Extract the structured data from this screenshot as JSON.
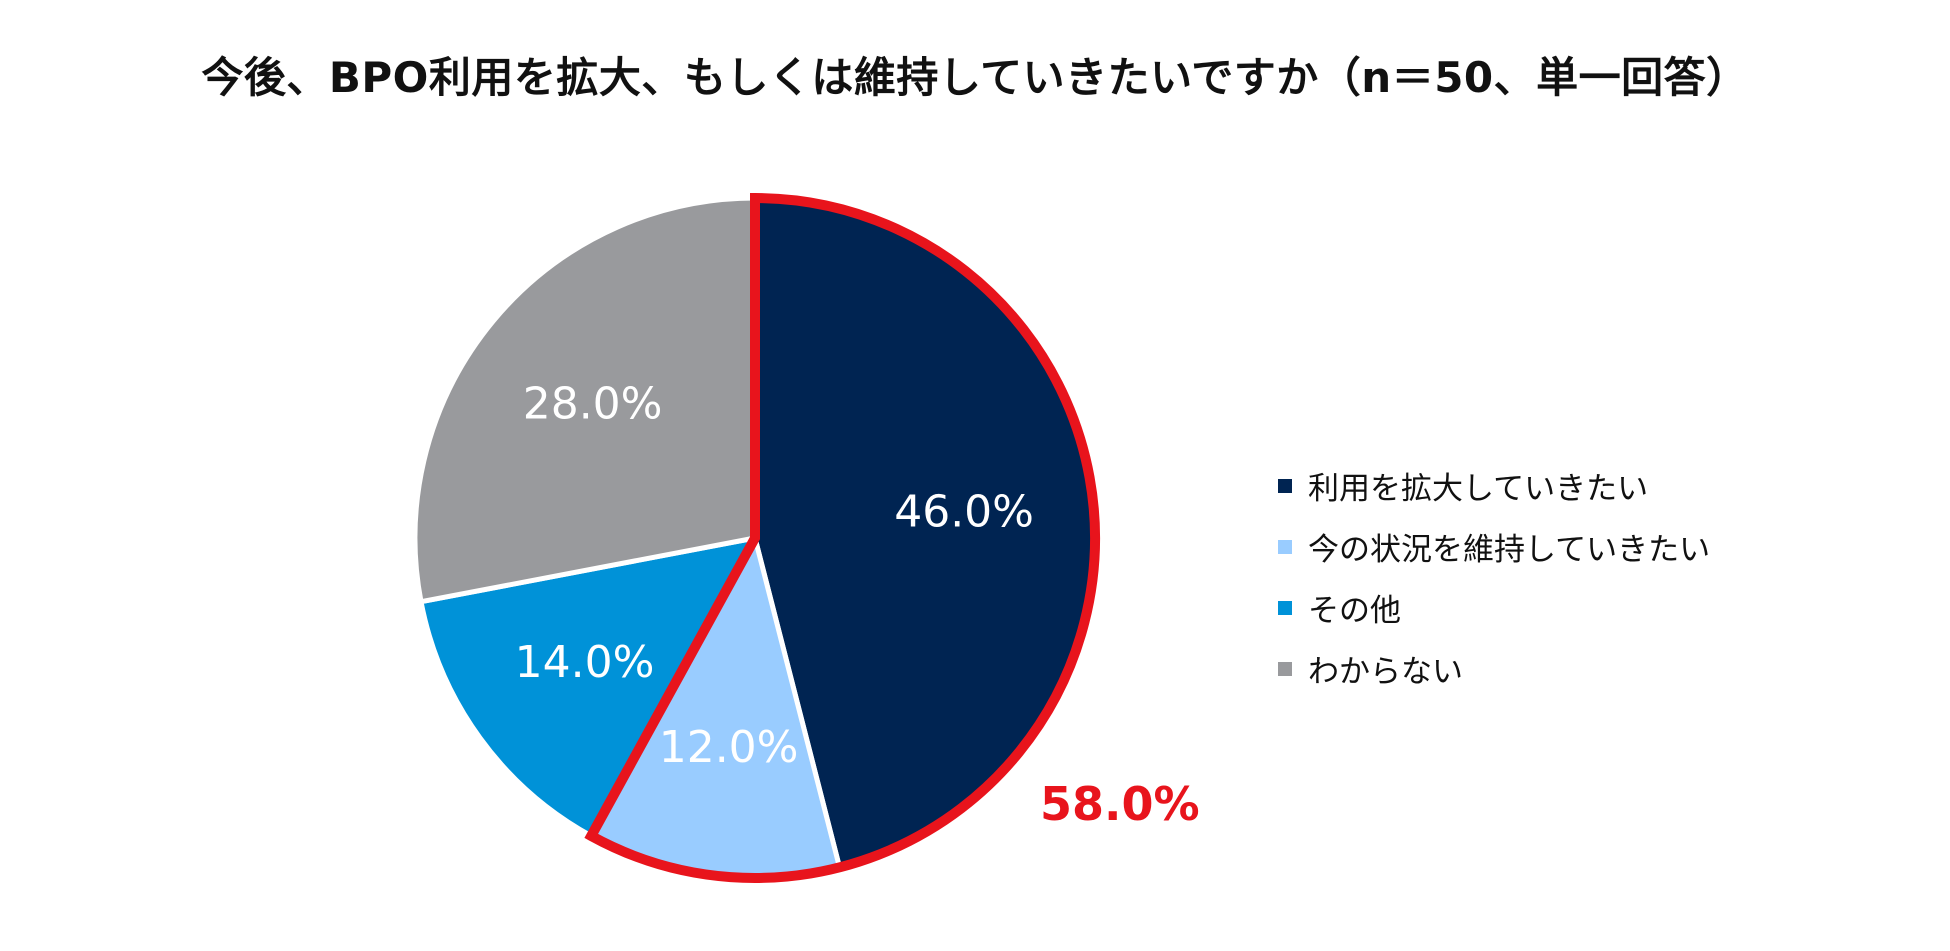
{
  "chart_data": {
    "type": "pie",
    "title": "今後、BPO利用を拡大、もしくは維持していきたいですか（n＝50、単一回答）",
    "slices": [
      {
        "name": "利用を拡大していきたい",
        "value": 46.0,
        "label": "46.0%",
        "color": "#002452"
      },
      {
        "name": "今の状況を維持していきたい",
        "value": 12.0,
        "label": "12.0%",
        "color": "#99ccff"
      },
      {
        "name": "その他",
        "value": 14.0,
        "label": "14.0%",
        "color": "#0092d8"
      },
      {
        "name": "わからない",
        "value": 28.0,
        "label": "28.0%",
        "color": "#999a9d"
      }
    ],
    "legend_placement": "right",
    "start_angle_deg": 0,
    "direction": "clockwise",
    "highlight": {
      "slices": [
        "利用を拡大していきたい",
        "今の状況を維持していきたい"
      ],
      "total_label": "58.0%",
      "color": "#e8141c"
    }
  }
}
